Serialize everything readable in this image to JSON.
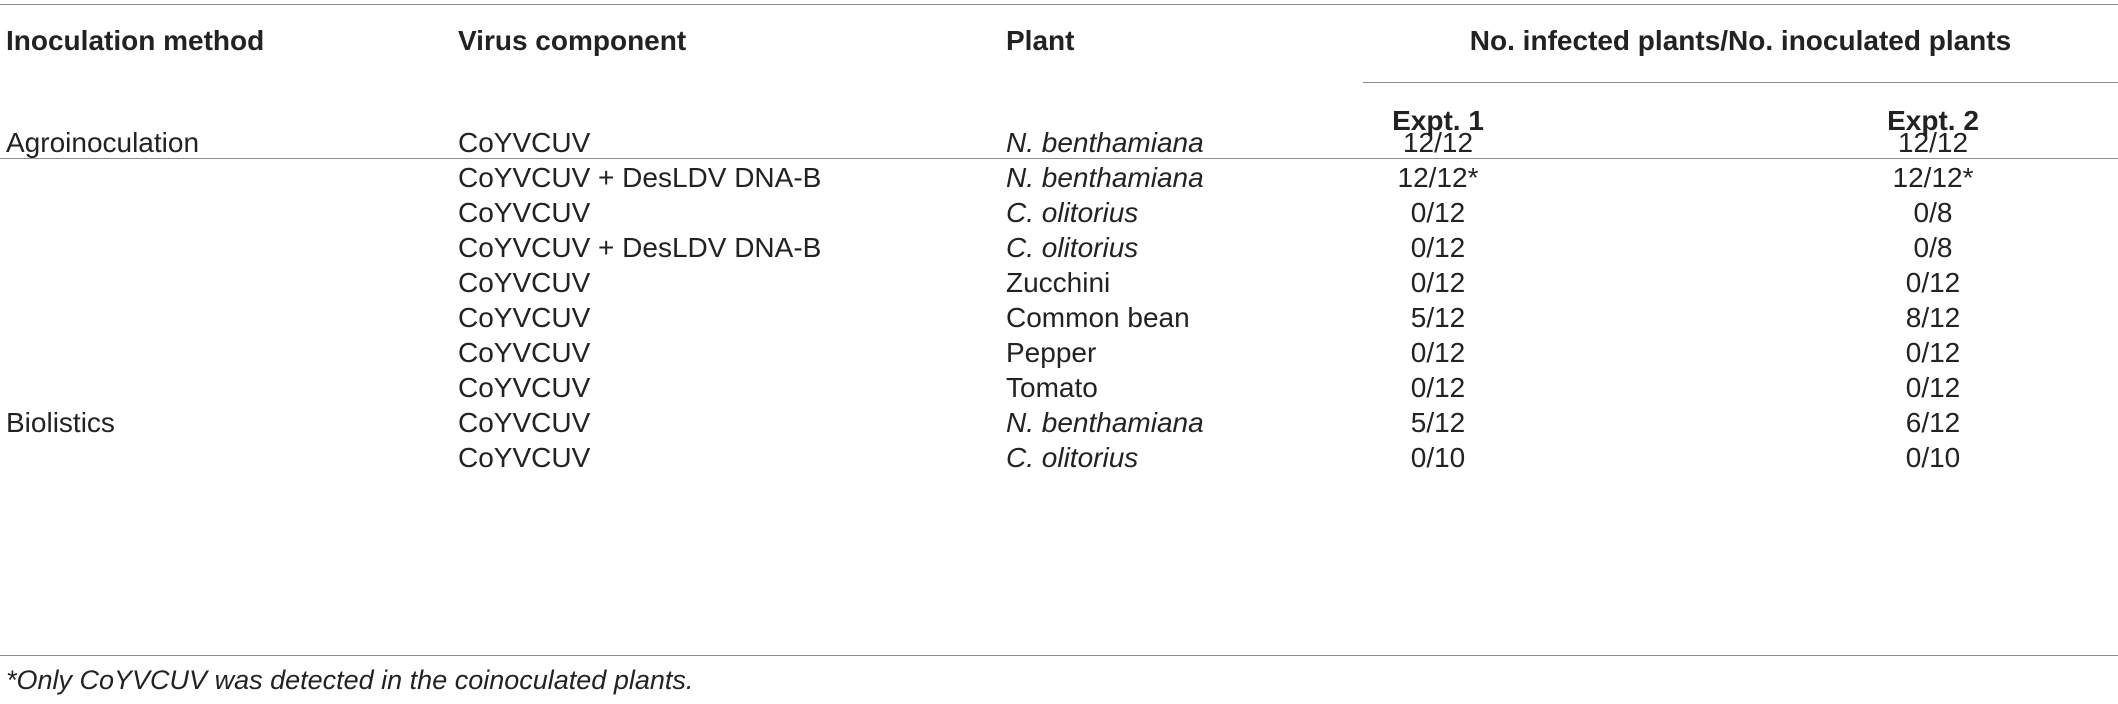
{
  "header": {
    "col_method": "Inoculation method",
    "col_component": "Virus component",
    "col_plant": "Plant",
    "col_span": "No. infected plants/No. inoculated plants",
    "col_expt1": "Expt. 1",
    "col_expt2": "Expt. 2"
  },
  "rows": [
    {
      "method": "Agroinoculation",
      "component": "CoYVCUV",
      "plant": "N. benthamiana",
      "plant_italic": true,
      "expt1": "12/12",
      "expt2": "12/12"
    },
    {
      "method": "",
      "component": "CoYVCUV + DesLDV DNA-B",
      "plant": "N. benthamiana",
      "plant_italic": true,
      "expt1": "12/12*",
      "expt2": "12/12*"
    },
    {
      "method": "",
      "component": "CoYVCUV",
      "plant": "C. olitorius",
      "plant_italic": true,
      "expt1": "0/12",
      "expt2": "0/8"
    },
    {
      "method": "",
      "component": "CoYVCUV + DesLDV DNA-B",
      "plant": "C. olitorius",
      "plant_italic": true,
      "expt1": "0/12",
      "expt2": "0/8"
    },
    {
      "method": "",
      "component": "CoYVCUV",
      "plant": "Zucchini",
      "plant_italic": false,
      "expt1": "0/12",
      "expt2": "0/12"
    },
    {
      "method": "",
      "component": "CoYVCUV",
      "plant": "Common bean",
      "plant_italic": false,
      "expt1": "5/12",
      "expt2": "8/12"
    },
    {
      "method": "",
      "component": "CoYVCUV",
      "plant": "Pepper",
      "plant_italic": false,
      "expt1": "0/12",
      "expt2": "0/12"
    },
    {
      "method": "",
      "component": "CoYVCUV",
      "plant": "Tomato",
      "plant_italic": false,
      "expt1": "0/12",
      "expt2": "0/12"
    },
    {
      "method": "Biolistics",
      "component": "CoYVCUV",
      "plant": "N. benthamiana",
      "plant_italic": true,
      "expt1": "5/12",
      "expt2": "6/12"
    },
    {
      "method": "",
      "component": "CoYVCUV",
      "plant": "C. olitorius",
      "plant_italic": true,
      "expt1": "0/10",
      "expt2": "0/10"
    }
  ],
  "footnote": "*Only CoYVCUV was detected in the coinoculated plants."
}
